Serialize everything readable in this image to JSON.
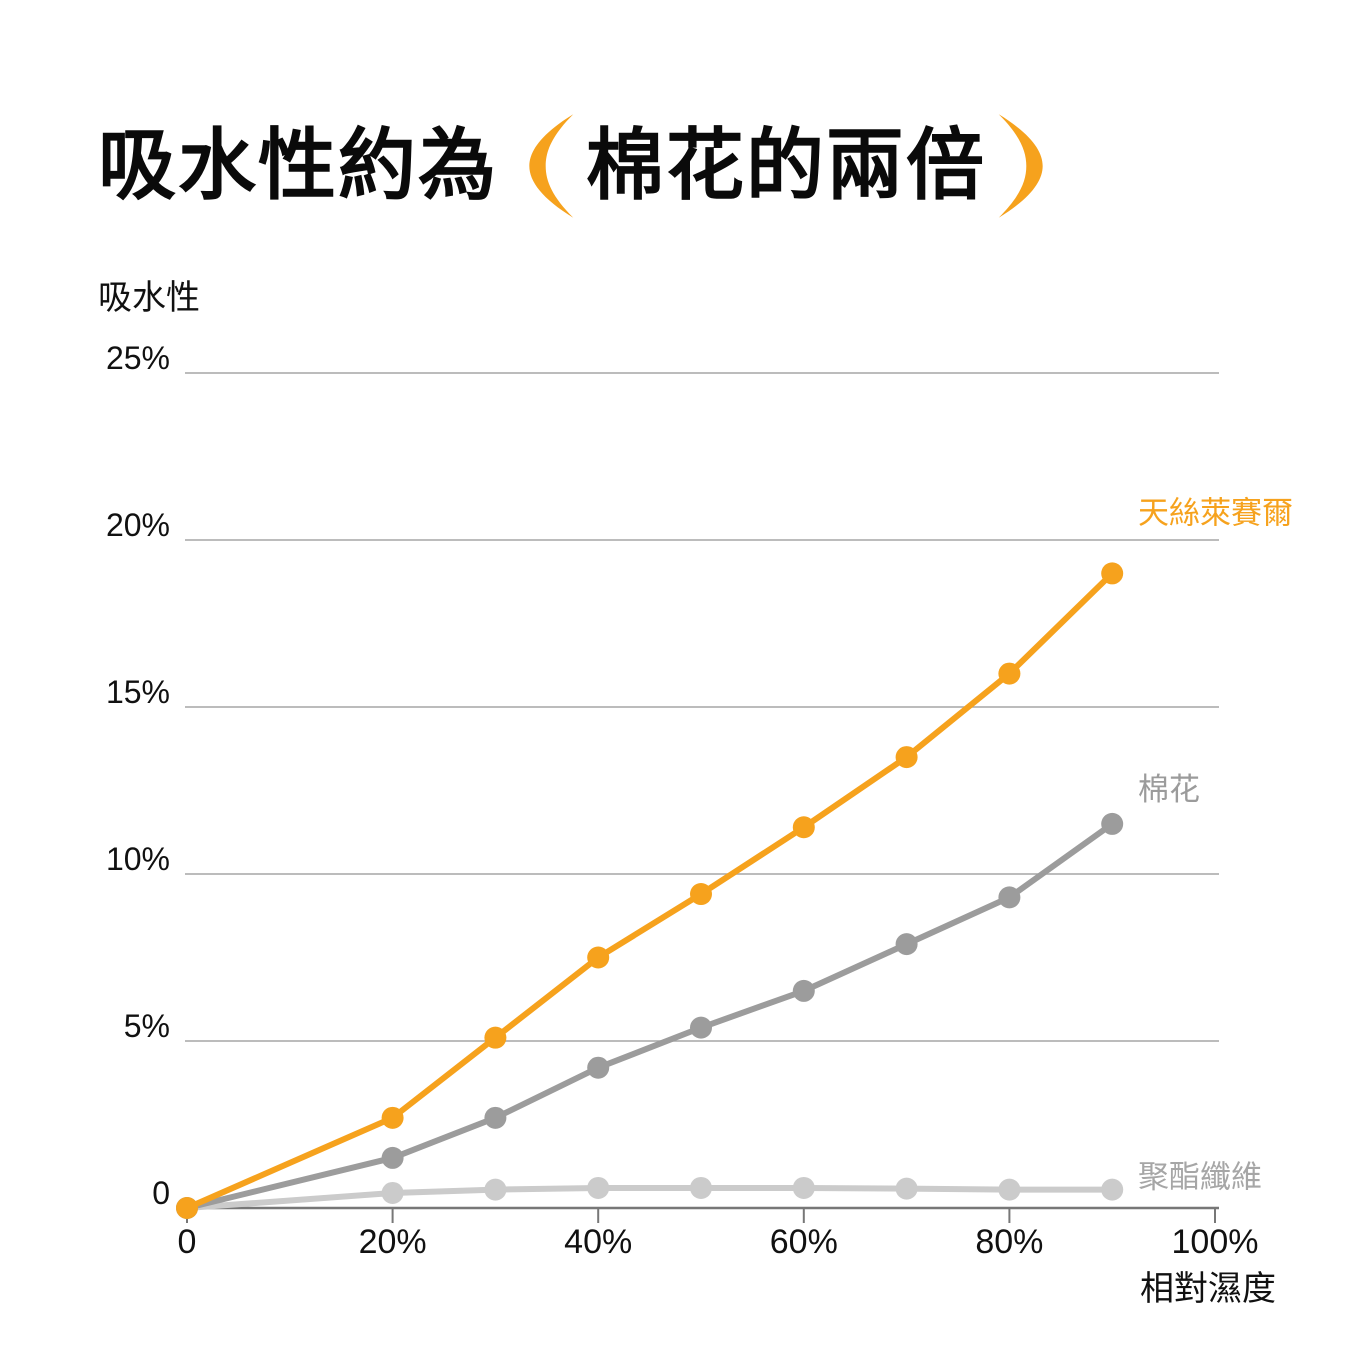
{
  "title": {
    "prefix": "吸水性約為",
    "paren_open": "(",
    "highlight": "棉花的兩倍",
    "paren_close": ")",
    "text_color": "#0a0a0a",
    "accent_color": "#F6A21D"
  },
  "colors": {
    "accent": "#F6A21D",
    "cotton_gray": "#9C9C9C",
    "polyester_gray": "#CBCBCB",
    "gridline": "#A6A6A6",
    "axis": "#777777",
    "label_text": "#111111"
  },
  "chart_data": {
    "type": "line",
    "ylabel": "吸水性",
    "xlabel": "相對濕度",
    "xlim": [
      0,
      100
    ],
    "ylim": [
      0,
      25
    ],
    "grid": "horizontal",
    "x_axis_ticks": [
      "0",
      "20%",
      "40%",
      "60%",
      "80%",
      "100%"
    ],
    "x_axis_tick_values": [
      0,
      20,
      40,
      60,
      80,
      100
    ],
    "y_axis_ticks": [
      "0",
      "5%",
      "10%",
      "15%",
      "20%",
      "25%"
    ],
    "y_axis_tick_values": [
      0,
      5,
      10,
      15,
      20,
      25
    ],
    "x": [
      0,
      20,
      30,
      40,
      50,
      60,
      70,
      80,
      90
    ],
    "series": [
      {
        "name": "天絲萊賽爾",
        "color": "#F6A21D",
        "label_color": "#F6A21D",
        "values": [
          0,
          2.7,
          5.1,
          7.5,
          9.4,
          11.4,
          13.5,
          16.0,
          19.0
        ]
      },
      {
        "name": "棉花",
        "color": "#9C9C9C",
        "label_color": "#9B9B9B",
        "values": [
          0,
          1.5,
          2.7,
          4.2,
          5.4,
          6.5,
          7.9,
          9.3,
          11.5
        ]
      },
      {
        "name": "聚酯纖維",
        "color": "#CBCBCB",
        "label_color": "#A6A6A6",
        "values": [
          0,
          0.45,
          0.55,
          0.6,
          0.6,
          0.6,
          0.58,
          0.55,
          0.55
        ]
      }
    ],
    "legend_position": "right-of-line-ends"
  }
}
